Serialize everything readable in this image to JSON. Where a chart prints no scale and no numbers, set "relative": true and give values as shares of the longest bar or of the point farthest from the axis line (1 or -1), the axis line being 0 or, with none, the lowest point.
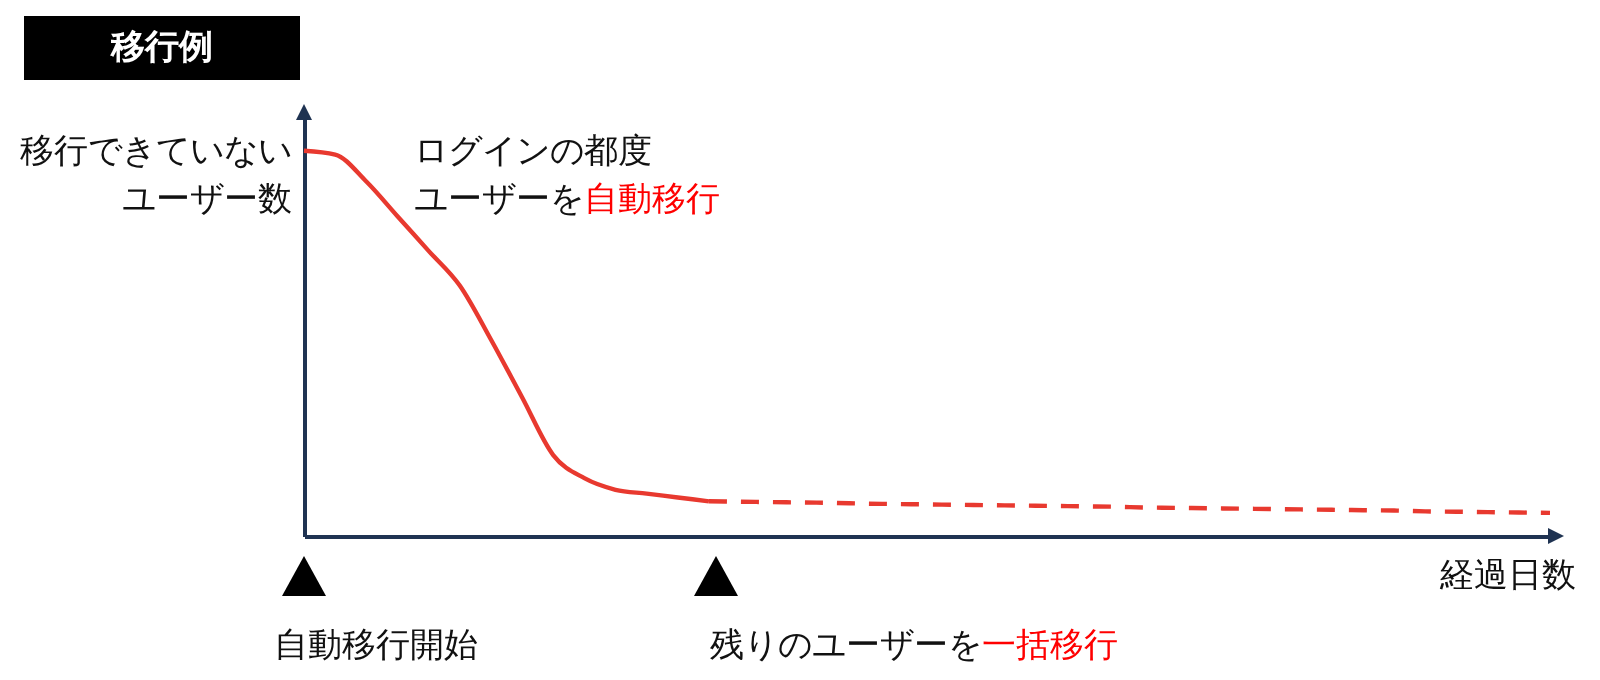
{
  "chart_data": {
    "type": "line",
    "relative": true,
    "title": "移行例",
    "ylabel": "移行できていないユーザー数",
    "xlabel": "経過日数",
    "annotations": [
      "ログインの都度",
      "ユーザーを",
      "自動移行",
      "自動移行開始",
      "残りのユーザーを",
      "一括移行"
    ],
    "categories": [
      null,
      null,
      null,
      null,
      null,
      null,
      null,
      null,
      null,
      null,
      null,
      null,
      null,
      null,
      null,
      null,
      null,
      null,
      null,
      null,
      null,
      null,
      null,
      null,
      null,
      null,
      null,
      null,
      null,
      null,
      null,
      null,
      null,
      null,
      null,
      null,
      null,
      null,
      null,
      null,
      null
    ],
    "series": [
      {
        "color": "#e8392f",
        "line_style": "solid",
        "values": [
          1.0,
          0.99,
          0.92,
          0.83,
          0.74,
          0.65,
          0.51,
          0.36,
          0.21,
          0.15,
          0.12,
          0.11,
          0.1,
          0.09,
          null,
          null,
          null,
          null,
          null,
          null,
          null,
          null,
          null,
          null,
          null,
          null,
          null,
          null,
          null,
          null,
          null,
          null,
          null,
          null,
          null,
          null,
          null,
          null,
          null,
          null,
          null
        ]
      },
      {
        "color": "#e8392f",
        "line_style": "dashed",
        "values": [
          null,
          null,
          null,
          null,
          null,
          null,
          null,
          null,
          null,
          null,
          null,
          null,
          null,
          0.09,
          0.089,
          0.088,
          0.087,
          0.086,
          0.084,
          0.083,
          0.082,
          0.081,
          0.08,
          0.079,
          0.078,
          0.077,
          0.076,
          0.074,
          0.073,
          0.072,
          0.071,
          0.07,
          0.069,
          0.068,
          0.067,
          0.066,
          0.064,
          0.063,
          0.062,
          0.061,
          0.06
        ]
      }
    ],
    "grid": false
  }
}
